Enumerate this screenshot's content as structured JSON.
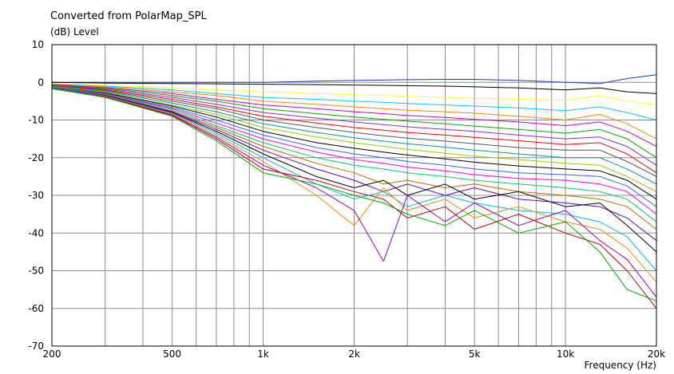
{
  "chart_data": {
    "type": "line",
    "title": "Converted from PolarMap_SPL",
    "ylabel": "(dB)  Level",
    "xlabel": "Frequency  (Hz)",
    "x_scale": "log",
    "xlim": [
      200,
      20000
    ],
    "ylim": [
      -70,
      10
    ],
    "grid": true,
    "legend": "none",
    "x_tick_labels": [
      {
        "value": 200,
        "label": "200"
      },
      {
        "value": 500,
        "label": "500"
      },
      {
        "value": 1000,
        "label": "1k"
      },
      {
        "value": 2000,
        "label": "2k"
      },
      {
        "value": 5000,
        "label": "5k"
      },
      {
        "value": 10000,
        "label": "10k"
      },
      {
        "value": 20000,
        "label": "20k"
      }
    ],
    "y_ticks": [
      10,
      0,
      -10,
      -20,
      -30,
      -40,
      -50,
      -60,
      -70
    ],
    "x": [
      200,
      300,
      500,
      700,
      1000,
      1500,
      2000,
      2500,
      3000,
      4000,
      5000,
      7000,
      10000,
      13000,
      16000,
      20000
    ],
    "series": [
      {
        "color": "#1a3fbf",
        "values": [
          0,
          0,
          0,
          0,
          0,
          0.3,
          0.5,
          0.6,
          0.7,
          0.8,
          0.8,
          0.5,
          0,
          -0.3,
          1.0,
          2.0
        ]
      },
      {
        "color": "#000000",
        "values": [
          0,
          -0.2,
          -0.3,
          -0.4,
          -0.5,
          -0.6,
          -0.7,
          -0.8,
          -0.9,
          -1.0,
          -1.2,
          -1.5,
          -2,
          -1.5,
          -2.5,
          -3
        ]
      },
      {
        "color": "#ffff33",
        "values": [
          -0.3,
          -0.8,
          -1.5,
          -2,
          -2.5,
          -3,
          -3.3,
          -3.5,
          -3.7,
          -4,
          -4.2,
          -4.5,
          -4.8,
          -3.5,
          -5,
          -6
        ]
      },
      {
        "color": "#00ccff",
        "values": [
          -0.5,
          -1,
          -2,
          -3,
          -4,
          -4.5,
          -5,
          -5.3,
          -5.6,
          -6,
          -6.3,
          -6.8,
          -7.5,
          -6.5,
          -8,
          -10
        ]
      },
      {
        "color": "#ff8800",
        "values": [
          -0.5,
          -1.2,
          -2.5,
          -3.5,
          -5,
          -5.8,
          -6.5,
          -7,
          -7.4,
          -7.8,
          -8.2,
          -9,
          -10,
          -8.5,
          -11,
          -15
        ]
      },
      {
        "color": "#cc00cc",
        "values": [
          -0.6,
          -1.4,
          -3,
          -4.5,
          -6,
          -7,
          -7.8,
          -8.3,
          -8.8,
          -9.3,
          -9.8,
          -10.5,
          -11.5,
          -10.5,
          -13,
          -17
        ]
      },
      {
        "color": "#00aa00",
        "values": [
          -0.7,
          -1.6,
          -3.5,
          -5,
          -7,
          -8.3,
          -9.2,
          -9.8,
          -10.3,
          -11,
          -11.6,
          -12.5,
          -13.5,
          -12.5,
          -15,
          -20
        ]
      },
      {
        "color": "#8a2be2",
        "values": [
          -0.8,
          -1.8,
          -4,
          -5.8,
          -8,
          -9.5,
          -10.5,
          -11.2,
          -11.8,
          -12.5,
          -13,
          -14,
          -15,
          -14.5,
          -17,
          -22
        ]
      },
      {
        "color": "#ff0000",
        "values": [
          -0.9,
          -2,
          -4.5,
          -6.5,
          -9,
          -10.8,
          -12,
          -12.7,
          -13.3,
          -14,
          -14.6,
          -15.5,
          -16.5,
          -16,
          -19,
          -24
        ]
      },
      {
        "color": "#555555",
        "values": [
          -1,
          -2.2,
          -5,
          -7,
          -10,
          -12,
          -13.3,
          -14.2,
          -14.8,
          -15.6,
          -16.3,
          -17.3,
          -18,
          -18,
          -21,
          -25
        ]
      },
      {
        "color": "#009999",
        "values": [
          -1,
          -2.4,
          -5.5,
          -7.8,
          -11,
          -13.3,
          -14.7,
          -15.6,
          -16.3,
          -17.2,
          -18,
          -19,
          -20,
          -20,
          -23,
          -27
        ]
      },
      {
        "color": "#99cc00",
        "values": [
          -1.1,
          -2.6,
          -6,
          -8.5,
          -12,
          -14.5,
          -16,
          -17,
          -17.8,
          -18.8,
          -19.6,
          -20.5,
          -21.5,
          -22,
          -25,
          -29
        ]
      },
      {
        "color": "#000000",
        "values": [
          -1.2,
          -2.8,
          -6.3,
          -9.2,
          -13,
          -16,
          -17.5,
          -18.5,
          -19.3,
          -20.3,
          -21.2,
          -22.2,
          -23,
          -23.5,
          -26,
          -31
        ]
      },
      {
        "color": "#3366ff",
        "values": [
          -1.2,
          -3,
          -6.7,
          -10,
          -14,
          -17.3,
          -19,
          -20,
          -21,
          -22,
          -23,
          -24,
          -24.5,
          -25,
          -27.5,
          -33
        ]
      },
      {
        "color": "#ff00ff",
        "values": [
          -1.3,
          -3.1,
          -7,
          -10.8,
          -15,
          -18.5,
          -20.5,
          -21.5,
          -22.5,
          -23.5,
          -24.5,
          -25.5,
          -26,
          -27,
          -29,
          -35
        ]
      },
      {
        "color": "#00cc66",
        "values": [
          -1.3,
          -3.2,
          -7.3,
          -11.5,
          -16,
          -20,
          -22,
          -23,
          -24,
          -25,
          -26,
          -27,
          -28,
          -29,
          -31,
          -37
        ]
      },
      {
        "color": "#cc6600",
        "values": [
          -1.4,
          -3.3,
          -7.6,
          -12,
          -17,
          -21.5,
          -24,
          -27,
          -26,
          -28,
          -27,
          -29,
          -30,
          -31,
          -33,
          -39
        ]
      },
      {
        "color": "#6600cc",
        "values": [
          -1.4,
          -3.4,
          -7.8,
          -12.5,
          -18,
          -23,
          -26,
          -29,
          -27,
          -30,
          -28,
          -31,
          -32,
          -33,
          -36,
          -42
        ]
      },
      {
        "color": "#000000",
        "values": [
          -1.5,
          -3.5,
          -8,
          -13,
          -19,
          -25,
          -28,
          -26,
          -30,
          -27,
          -31,
          -29,
          -33,
          -32,
          -38,
          -45
        ]
      },
      {
        "color": "#00bbee",
        "values": [
          -1.5,
          -3.6,
          -8.2,
          -13.5,
          -20,
          -27,
          -31,
          -29,
          -33,
          -30,
          -32,
          -34,
          -35,
          -37,
          -41,
          -50
        ]
      },
      {
        "color": "#ff8800",
        "values": [
          -1.6,
          -3.7,
          -8.4,
          -14,
          -21,
          -30,
          -38,
          -28,
          -34,
          -31,
          -36,
          -33,
          -37,
          -39,
          -44,
          -53
        ]
      },
      {
        "color": "#9900cc",
        "values": [
          -1.6,
          -3.8,
          -8.6,
          -14.5,
          -22,
          -28,
          -34,
          -47.5,
          -30,
          -37,
          -32,
          -38,
          -34,
          -42,
          -47,
          -57
        ]
      },
      {
        "color": "#cc0000",
        "values": [
          -1.7,
          -3.9,
          -8.8,
          -15,
          -23,
          -26,
          -29,
          -31,
          -36,
          -33,
          -39,
          -35,
          -40,
          -43,
          -50,
          -60
        ]
      },
      {
        "color": "#00aa00",
        "values": [
          -1.7,
          -4,
          -9,
          -15.5,
          -24,
          -27,
          -30,
          -32,
          -35,
          -38,
          -34,
          -40,
          -37,
          -45,
          -55,
          -58
        ]
      }
    ]
  }
}
